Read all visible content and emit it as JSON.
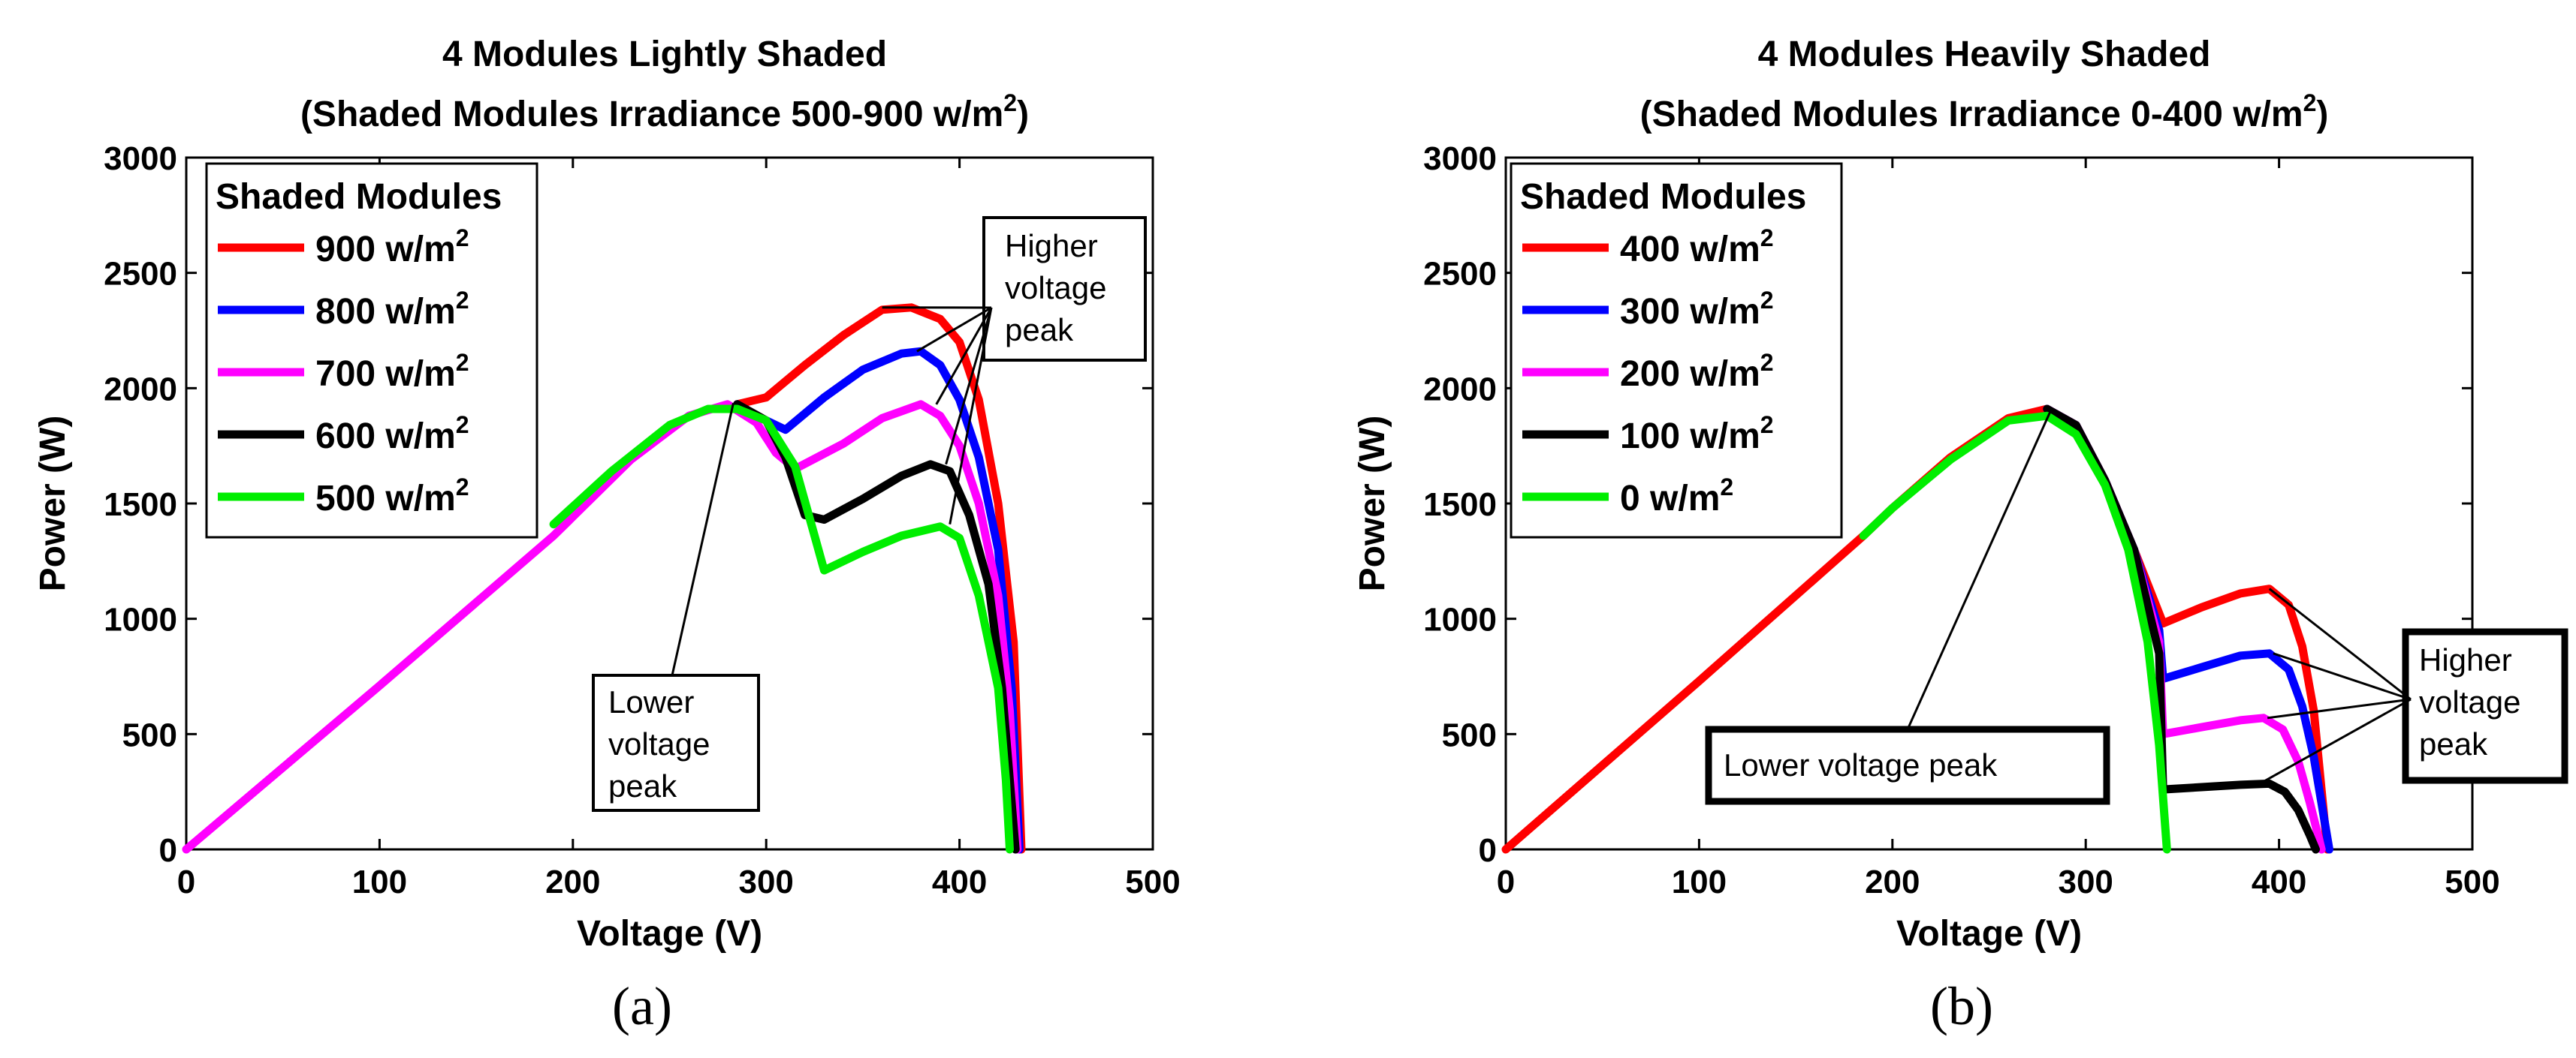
{
  "chart_data": [
    {
      "type": "line",
      "panel_label": "(a)",
      "title": "4 Modules Lightly Shaded",
      "subtitle": "(Shaded Modules Irradiance 500-900 w/m",
      "subtitle_sup": "2",
      "subtitle_end": ")",
      "xlabel": "Voltage (V)",
      "ylabel": "Power (W)",
      "xlim": [
        0,
        500
      ],
      "ylim": [
        0,
        3000
      ],
      "xticks": [
        0,
        100,
        200,
        300,
        400,
        500
      ],
      "yticks": [
        0,
        500,
        1000,
        1500,
        2000,
        2500,
        3000
      ],
      "legend_title": "Shaded Modules",
      "legend_unit": " w/m",
      "legend_unit_sup": "2",
      "annotations": {
        "higher": [
          "Higher",
          "voltage",
          "peak"
        ],
        "lower": [
          "Lower",
          "voltage",
          "peak"
        ]
      },
      "series": [
        {
          "name": "900",
          "color": "#ff0000",
          "points": [
            [
              285,
              1930
            ],
            [
              300,
              1960
            ],
            [
              320,
              2100
            ],
            [
              340,
              2230
            ],
            [
              360,
              2340
            ],
            [
              375,
              2350
            ],
            [
              390,
              2300
            ],
            [
              400,
              2200
            ],
            [
              410,
              1950
            ],
            [
              420,
              1500
            ],
            [
              428,
              900
            ],
            [
              432,
              0
            ]
          ]
        },
        {
          "name": "800",
          "color": "#0000ff",
          "points": [
            [
              285,
              1930
            ],
            [
              295,
              1880
            ],
            [
              310,
              1820
            ],
            [
              330,
              1960
            ],
            [
              350,
              2080
            ],
            [
              370,
              2150
            ],
            [
              380,
              2160
            ],
            [
              390,
              2100
            ],
            [
              400,
              1950
            ],
            [
              410,
              1700
            ],
            [
              420,
              1300
            ],
            [
              427,
              700
            ],
            [
              431,
              0
            ]
          ]
        },
        {
          "name": "700",
          "color": "#ff00ff",
          "points": [
            [
              0,
              0
            ],
            [
              100,
              710
            ],
            [
              190,
              1360
            ],
            [
              230,
              1690
            ],
            [
              260,
              1880
            ],
            [
              280,
              1930
            ],
            [
              295,
              1850
            ],
            [
              305,
              1720
            ],
            [
              315,
              1650
            ],
            [
              340,
              1760
            ],
            [
              360,
              1870
            ],
            [
              380,
              1930
            ],
            [
              390,
              1880
            ],
            [
              400,
              1750
            ],
            [
              410,
              1500
            ],
            [
              420,
              1100
            ],
            [
              426,
              600
            ],
            [
              430,
              0
            ]
          ]
        },
        {
          "name": "600",
          "color": "#000000",
          "points": [
            [
              285,
              1930
            ],
            [
              300,
              1860
            ],
            [
              310,
              1700
            ],
            [
              320,
              1450
            ],
            [
              330,
              1430
            ],
            [
              350,
              1520
            ],
            [
              370,
              1620
            ],
            [
              385,
              1670
            ],
            [
              395,
              1640
            ],
            [
              405,
              1450
            ],
            [
              415,
              1150
            ],
            [
              422,
              700
            ],
            [
              429,
              0
            ]
          ]
        },
        {
          "name": "500",
          "color": "#00ee00",
          "points": [
            [
              190,
              1410
            ],
            [
              220,
              1640
            ],
            [
              250,
              1840
            ],
            [
              270,
              1910
            ],
            [
              285,
              1910
            ],
            [
              300,
              1860
            ],
            [
              315,
              1660
            ],
            [
              325,
              1360
            ],
            [
              330,
              1210
            ],
            [
              350,
              1290
            ],
            [
              370,
              1360
            ],
            [
              390,
              1400
            ],
            [
              400,
              1350
            ],
            [
              410,
              1100
            ],
            [
              420,
              700
            ],
            [
              424,
              300
            ],
            [
              426,
              0
            ]
          ]
        }
      ]
    },
    {
      "type": "line",
      "panel_label": "(b)",
      "title": "4 Modules Heavily Shaded",
      "subtitle": "(Shaded Modules Irradiance 0-400 w/m",
      "subtitle_sup": "2",
      "subtitle_end": ")",
      "xlabel": "Voltage (V)",
      "ylabel": "Power (W)",
      "xlim": [
        0,
        500
      ],
      "ylim": [
        0,
        3000
      ],
      "xticks": [
        0,
        100,
        200,
        300,
        400,
        500
      ],
      "yticks": [
        0,
        500,
        1000,
        1500,
        2000,
        2500,
        3000
      ],
      "legend_title": "Shaded Modules",
      "legend_unit": " w/m",
      "legend_unit_sup": "2",
      "annotations": {
        "higher": [
          "Higher",
          "voltage",
          "peak"
        ],
        "lower": [
          "Lower voltage peak"
        ]
      },
      "series": [
        {
          "name": "400",
          "color": "#ff0000",
          "points": [
            [
              0,
              0
            ],
            [
              100,
              730
            ],
            [
              185,
              1360
            ],
            [
              200,
              1480
            ],
            [
              230,
              1700
            ],
            [
              260,
              1870
            ],
            [
              280,
              1910
            ],
            [
              295,
              1840
            ],
            [
              310,
              1600
            ],
            [
              325,
              1300
            ],
            [
              340,
              980
            ],
            [
              360,
              1050
            ],
            [
              380,
              1110
            ],
            [
              395,
              1130
            ],
            [
              405,
              1060
            ],
            [
              412,
              880
            ],
            [
              418,
              600
            ],
            [
              425,
              0
            ]
          ]
        },
        {
          "name": "300",
          "color": "#0000ff",
          "points": [
            [
              280,
              1910
            ],
            [
              295,
              1840
            ],
            [
              310,
              1600
            ],
            [
              325,
              1300
            ],
            [
              338,
              950
            ],
            [
              340,
              740
            ],
            [
              360,
              790
            ],
            [
              380,
              840
            ],
            [
              395,
              850
            ],
            [
              405,
              780
            ],
            [
              412,
              620
            ],
            [
              418,
              400
            ],
            [
              426,
              0
            ]
          ]
        },
        {
          "name": "200",
          "color": "#ff00ff",
          "points": [
            [
              280,
              1910
            ],
            [
              295,
              1840
            ],
            [
              310,
              1600
            ],
            [
              325,
              1300
            ],
            [
              338,
              900
            ],
            [
              340,
              500
            ],
            [
              360,
              530
            ],
            [
              380,
              560
            ],
            [
              392,
              570
            ],
            [
              402,
              520
            ],
            [
              410,
              380
            ],
            [
              416,
              200
            ],
            [
              422,
              0
            ]
          ]
        },
        {
          "name": "100",
          "color": "#000000",
          "points": [
            [
              280,
              1910
            ],
            [
              295,
              1840
            ],
            [
              310,
              1600
            ],
            [
              325,
              1300
            ],
            [
              338,
              850
            ],
            [
              340,
              260
            ],
            [
              360,
              270
            ],
            [
              380,
              280
            ],
            [
              395,
              285
            ],
            [
              403,
              250
            ],
            [
              410,
              170
            ],
            [
              416,
              60
            ],
            [
              419,
              0
            ]
          ]
        },
        {
          "name": "0",
          "color": "#00ee00",
          "points": [
            [
              185,
              1360
            ],
            [
              200,
              1480
            ],
            [
              230,
              1690
            ],
            [
              260,
              1860
            ],
            [
              280,
              1880
            ],
            [
              295,
              1800
            ],
            [
              310,
              1580
            ],
            [
              322,
              1300
            ],
            [
              332,
              900
            ],
            [
              338,
              450
            ],
            [
              342,
              0
            ]
          ]
        }
      ]
    }
  ]
}
